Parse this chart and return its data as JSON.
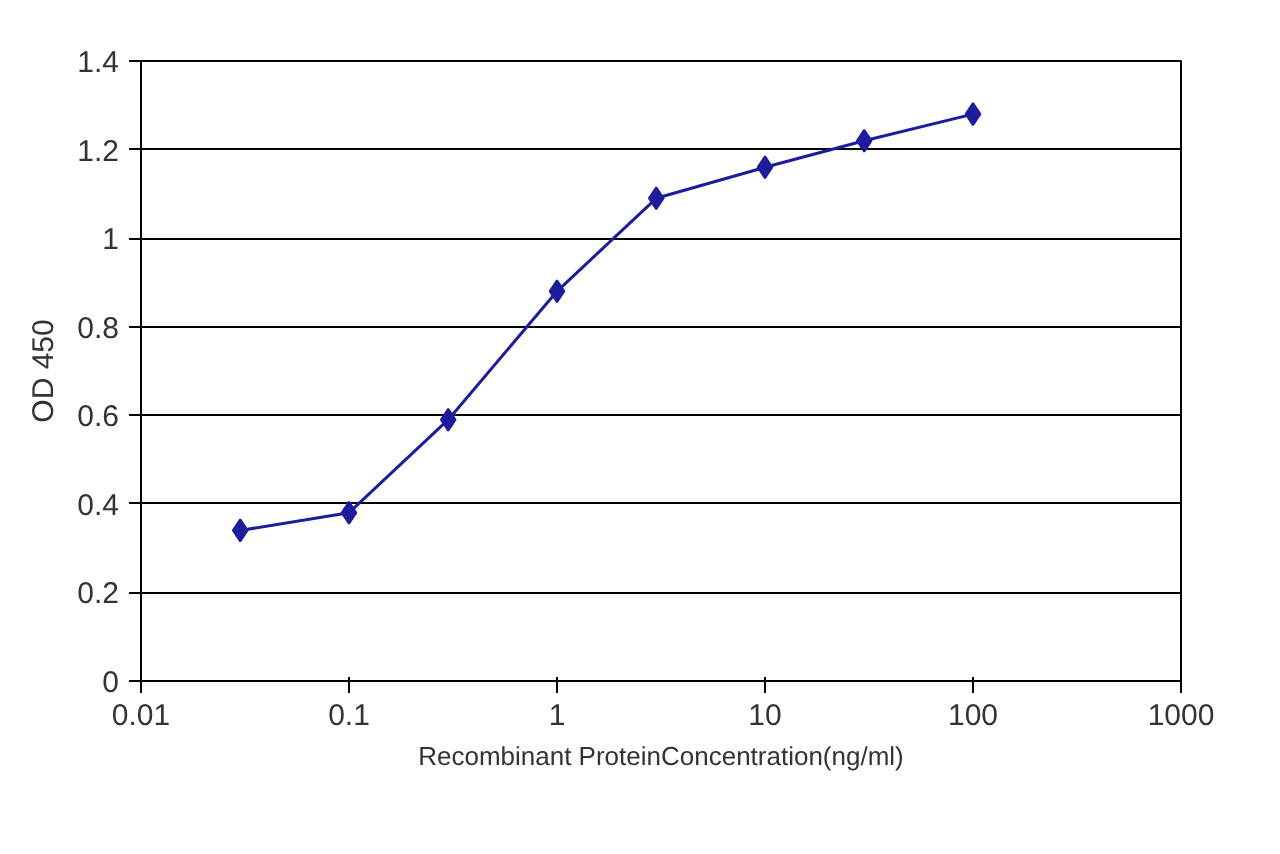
{
  "chart_data": {
    "type": "line",
    "xlabel": "Recombinant ProteinConcentration(ng/ml)",
    "ylabel": "OD 450",
    "log": "x",
    "grid": "y",
    "marker": "diamond",
    "line_style": "solid",
    "xlim": [
      0.01,
      1000
    ],
    "xticks": [
      0.01,
      0.1,
      1,
      10,
      100,
      1000
    ],
    "ylim": [
      0,
      1.4
    ],
    "yticks": [
      0,
      0.2,
      0.4,
      0.6,
      0.8,
      1,
      1.2,
      1.4
    ],
    "x": [
      0.03,
      0.1,
      0.3,
      1,
      3,
      10,
      30,
      100
    ],
    "series": [
      {
        "color": "#1c1c9c",
        "values": [
          0.34,
          0.38,
          0.59,
          0.88,
          1.09,
          1.16,
          1.22,
          1.28
        ]
      }
    ]
  }
}
